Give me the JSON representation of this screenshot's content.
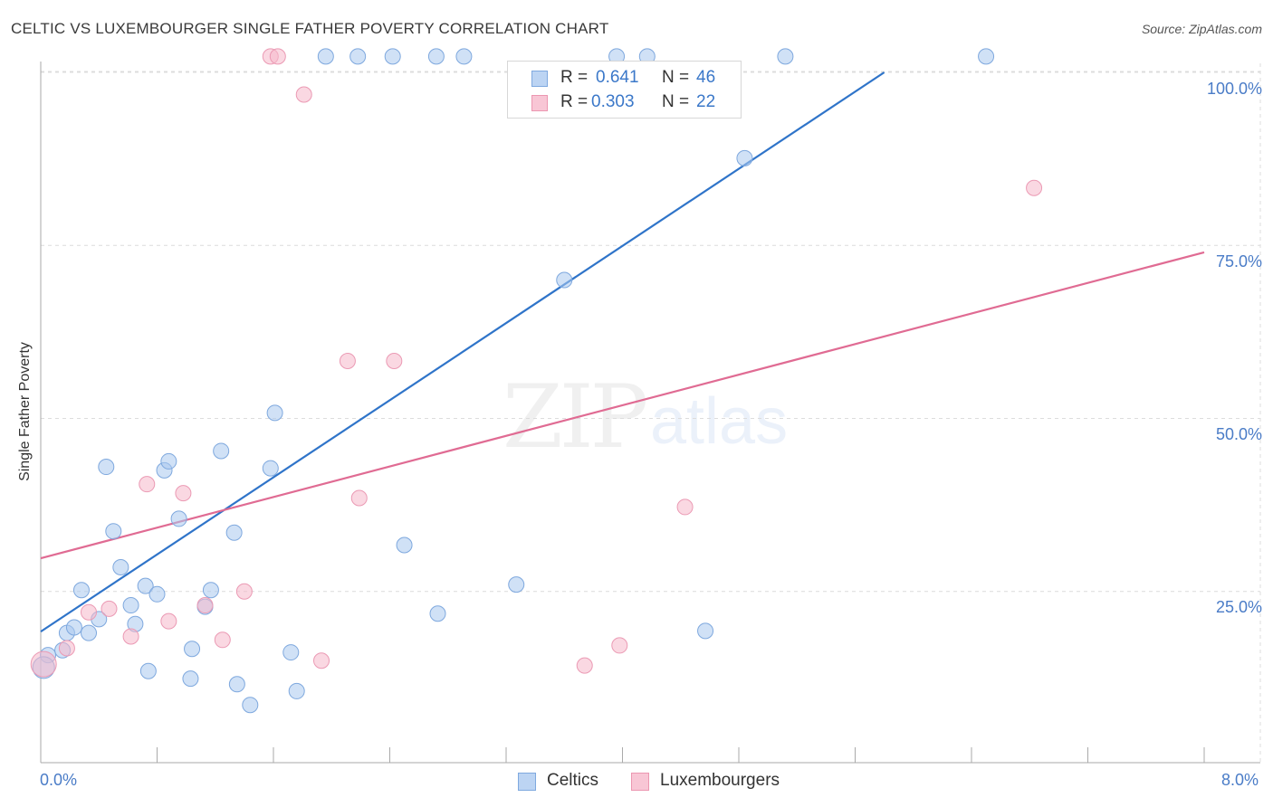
{
  "header": {
    "title": "CELTIC VS LUXEMBOURGER SINGLE FATHER POVERTY CORRELATION CHART",
    "source": "Source: ZipAtlas.com"
  },
  "watermark": {
    "zip": "ZIP",
    "atlas": "atlas"
  },
  "legend": {
    "r_label": "R =",
    "n_label": "N =",
    "series": [
      {
        "name": "Celtics",
        "r": "0.641",
        "n": "46"
      },
      {
        "name": "Luxembourgers",
        "r": "0.303",
        "n": "22"
      }
    ]
  },
  "chart_data": {
    "type": "scatter",
    "title": "CELTIC VS LUXEMBOURGER SINGLE FATHER POVERTY CORRELATION CHART",
    "xlabel": "",
    "ylabel": "Single Father Poverty",
    "xlim": [
      0,
      8
    ],
    "ylim": [
      0,
      100
    ],
    "x_tick_labels": [
      "0.0%",
      "8.0%"
    ],
    "y_ticks": [
      25,
      50,
      75,
      100
    ],
    "y_tick_labels": [
      "25.0%",
      "50.0%",
      "75.0%",
      "100.0%"
    ],
    "colors": {
      "celtics": "#a9c8ef",
      "celtics_line": "#2f74c9",
      "luxembourgers": "#f5b8cb",
      "luxembourgers_line": "#e06b93"
    },
    "series": [
      {
        "name": "Celtics",
        "trend": {
          "x0": 0,
          "y0": 19.2,
          "x1": 5.8,
          "y1": 100
        },
        "points": [
          [
            0.05,
            15.8
          ],
          [
            0.15,
            16.5
          ],
          [
            0.18,
            19.0
          ],
          [
            0.23,
            19.8
          ],
          [
            0.28,
            25.2
          ],
          [
            0.33,
            19.0
          ],
          [
            0.4,
            21.0
          ],
          [
            0.45,
            43.0
          ],
          [
            0.5,
            33.7
          ],
          [
            0.55,
            28.5
          ],
          [
            0.62,
            23.0
          ],
          [
            0.65,
            20.3
          ],
          [
            0.72,
            25.8
          ],
          [
            0.74,
            13.5
          ],
          [
            0.8,
            24.6
          ],
          [
            0.85,
            42.5
          ],
          [
            0.88,
            43.8
          ],
          [
            0.95,
            35.5
          ],
          [
            1.03,
            12.4
          ],
          [
            1.04,
            16.7
          ],
          [
            1.13,
            22.8
          ],
          [
            1.17,
            25.2
          ],
          [
            1.24,
            45.3
          ],
          [
            1.33,
            33.5
          ],
          [
            1.35,
            11.6
          ],
          [
            1.44,
            8.6
          ],
          [
            1.58,
            42.8
          ],
          [
            1.61,
            50.8
          ],
          [
            1.72,
            16.2
          ],
          [
            1.76,
            10.6
          ],
          [
            1.96,
            102.3
          ],
          [
            2.18,
            102.3
          ],
          [
            2.42,
            102.3
          ],
          [
            2.5,
            31.7
          ],
          [
            2.72,
            102.3
          ],
          [
            2.73,
            21.8
          ],
          [
            2.91,
            102.3
          ],
          [
            3.27,
            26.0
          ],
          [
            3.96,
            102.3
          ],
          [
            3.6,
            70.0
          ],
          [
            4.17,
            102.3
          ],
          [
            4.57,
            19.3
          ],
          [
            4.84,
            87.6
          ],
          [
            5.12,
            102.3
          ],
          [
            6.5,
            102.3
          ],
          [
            0.02,
            14.0
          ]
        ]
      },
      {
        "name": "Luxembourgers",
        "trend": {
          "x0": 0,
          "y0": 29.8,
          "x1": 8,
          "y1": 74.0
        },
        "points": [
          [
            0.02,
            14.5
          ],
          [
            0.18,
            16.8
          ],
          [
            0.33,
            22.0
          ],
          [
            0.47,
            22.5
          ],
          [
            0.62,
            18.5
          ],
          [
            0.73,
            40.5
          ],
          [
            0.88,
            20.7
          ],
          [
            0.98,
            39.2
          ],
          [
            1.13,
            23.0
          ],
          [
            1.25,
            18.0
          ],
          [
            1.4,
            25.0
          ],
          [
            1.58,
            102.3
          ],
          [
            1.63,
            102.3
          ],
          [
            1.81,
            96.8
          ],
          [
            1.93,
            15.0
          ],
          [
            2.11,
            58.3
          ],
          [
            2.19,
            38.5
          ],
          [
            2.43,
            58.3
          ],
          [
            3.74,
            14.3
          ],
          [
            3.98,
            17.2
          ],
          [
            4.43,
            37.2
          ],
          [
            6.83,
            83.3
          ]
        ]
      }
    ]
  }
}
